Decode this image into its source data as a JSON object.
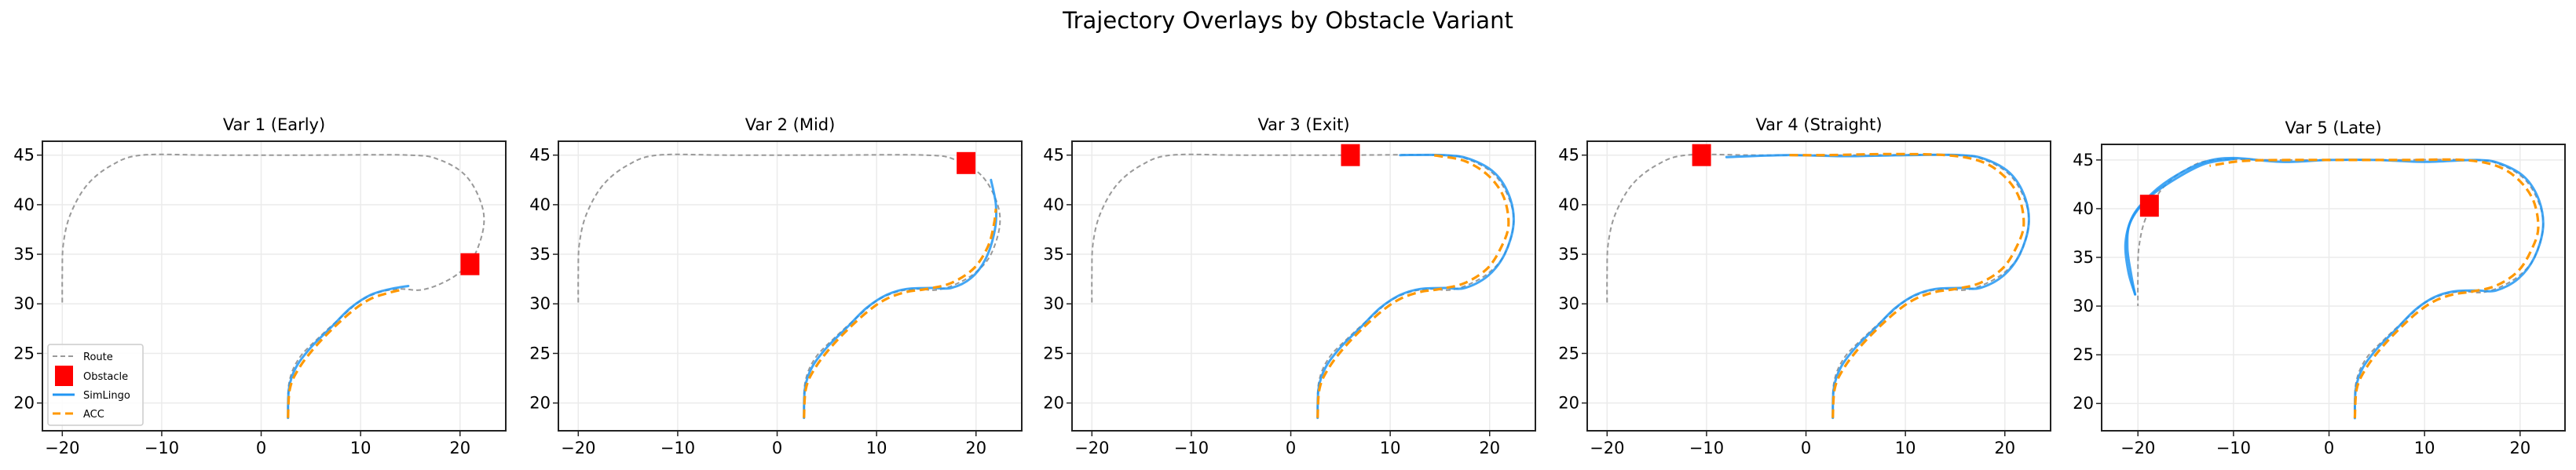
{
  "figure": {
    "title": "Trajectory Overlays by Obstacle Variant"
  },
  "colors": {
    "route": "#999999",
    "obstacle": "#ff0000",
    "simlingo": "#2196f3",
    "acc": "#ff9800",
    "grid": "#ebebeb"
  },
  "legend": {
    "placement": "lower-left of first panel",
    "items": [
      "Route",
      "Obstacle",
      "SimLingo",
      "ACC"
    ]
  },
  "chart_data": [
    {
      "type": "line",
      "title": "Var 1 (Early)",
      "xlim": [
        -22,
        24.6
      ],
      "ylim": [
        17.2,
        46.4
      ],
      "grid": true,
      "xticks": [
        "−20",
        "−10",
        "0",
        "10",
        "20"
      ],
      "xtick_values": [
        -20,
        -10,
        0,
        10,
        20
      ],
      "yticks": [
        "20",
        "25",
        "30",
        "35",
        "40",
        "45"
      ],
      "ytick_values": [
        20,
        25,
        30,
        35,
        40,
        45
      ],
      "obstacle": [
        21,
        34
      ],
      "simlingo": [
        [
          [
            2.7,
            18.5
          ],
          [
            2.8,
            21.5
          ],
          [
            3.5,
            23.6
          ],
          [
            5,
            25.6
          ],
          [
            7,
            27.6
          ],
          [
            9,
            29.6
          ],
          [
            11,
            30.9
          ],
          [
            13,
            31.5
          ],
          [
            14.8,
            31.8
          ]
        ]
      ],
      "acc": [
        [
          2.7,
          18.5
        ],
        [
          2.9,
          21.5
        ],
        [
          3.8,
          23.5
        ],
        [
          5.3,
          25.5
        ],
        [
          7.2,
          27.5
        ],
        [
          9.2,
          29.3
        ],
        [
          11,
          30.5
        ],
        [
          12.8,
          31.1
        ],
        [
          14,
          31.4
        ]
      ]
    },
    {
      "type": "line",
      "title": "Var 2 (Mid)",
      "xlim": [
        -22,
        24.6
      ],
      "ylim": [
        17.2,
        46.4
      ],
      "grid": true,
      "xticks": [
        "−20",
        "−10",
        "0",
        "10",
        "20"
      ],
      "xtick_values": [
        -20,
        -10,
        0,
        10,
        20
      ],
      "yticks": [
        "20",
        "25",
        "30",
        "35",
        "40",
        "45"
      ],
      "ytick_values": [
        20,
        25,
        30,
        35,
        40,
        45
      ],
      "obstacle": [
        19,
        44.2
      ],
      "simlingo": [
        [
          [
            2.7,
            18.5
          ],
          [
            2.8,
            21.5
          ],
          [
            3.5,
            23.6
          ],
          [
            5,
            25.6
          ],
          [
            7,
            27.6
          ],
          [
            9,
            29.6
          ],
          [
            11,
            30.9
          ],
          [
            13,
            31.5
          ],
          [
            15.5,
            31.6
          ],
          [
            17.5,
            31.6
          ],
          [
            19.5,
            32.6
          ],
          [
            21,
            34.6
          ],
          [
            21.9,
            37.5
          ],
          [
            22,
            40
          ],
          [
            21.5,
            42.5
          ]
        ]
      ],
      "acc": [
        [
          2.7,
          18.5
        ],
        [
          2.9,
          21.5
        ],
        [
          3.8,
          23.5
        ],
        [
          5.3,
          25.5
        ],
        [
          7.2,
          27.5
        ],
        [
          9.2,
          29.3
        ],
        [
          11,
          30.5
        ],
        [
          13,
          31.2
        ],
        [
          15,
          31.5
        ],
        [
          17.5,
          32.1
        ],
        [
          19.8,
          33.6
        ],
        [
          21.2,
          35.8
        ],
        [
          21.8,
          38
        ],
        [
          22,
          39.6
        ]
      ]
    },
    {
      "type": "line",
      "title": "Var 3 (Exit)",
      "xlim": [
        -22,
        24.6
      ],
      "ylim": [
        17.2,
        46.4
      ],
      "grid": true,
      "xticks": [
        "−20",
        "−10",
        "0",
        "10",
        "20"
      ],
      "xtick_values": [
        -20,
        -10,
        0,
        10,
        20
      ],
      "yticks": [
        "20",
        "25",
        "30",
        "35",
        "40",
        "45"
      ],
      "ytick_values": [
        20,
        25,
        30,
        35,
        40,
        45
      ],
      "obstacle": [
        6,
        45
      ],
      "simlingo": [
        [
          [
            2.7,
            18.5
          ],
          [
            2.8,
            21.5
          ],
          [
            3.5,
            23.6
          ],
          [
            5,
            25.6
          ],
          [
            7,
            27.6
          ],
          [
            9,
            29.6
          ],
          [
            11,
            30.9
          ],
          [
            13,
            31.5
          ],
          [
            15.5,
            31.6
          ],
          [
            17.5,
            31.6
          ],
          [
            19.8,
            32.8
          ],
          [
            21.5,
            35
          ],
          [
            22.4,
            38
          ],
          [
            22,
            40.8
          ],
          [
            20.5,
            43.2
          ],
          [
            18,
            44.6
          ],
          [
            15.5,
            45
          ],
          [
            11,
            45
          ]
        ]
      ],
      "acc": [
        [
          2.7,
          18.5
        ],
        [
          2.9,
          21.5
        ],
        [
          3.8,
          23.5
        ],
        [
          5.3,
          25.5
        ],
        [
          7.2,
          27.5
        ],
        [
          9.2,
          29.3
        ],
        [
          11,
          30.5
        ],
        [
          13,
          31.2
        ],
        [
          15,
          31.5
        ],
        [
          17.5,
          32.1
        ],
        [
          19.8,
          33.6
        ],
        [
          21.2,
          35.8
        ],
        [
          21.9,
          38
        ],
        [
          21.4,
          40.8
        ],
        [
          19.8,
          43
        ],
        [
          17.5,
          44.4
        ],
        [
          15,
          44.9
        ],
        [
          14,
          45
        ]
      ]
    },
    {
      "type": "line",
      "title": "Var 4 (Straight)",
      "xlim": [
        -22,
        24.6
      ],
      "ylim": [
        17.2,
        46.4
      ],
      "grid": true,
      "xticks": [
        "−20",
        "−10",
        "0",
        "10",
        "20"
      ],
      "xtick_values": [
        -20,
        -10,
        0,
        10,
        20
      ],
      "yticks": [
        "20",
        "25",
        "30",
        "35",
        "40",
        "45"
      ],
      "ytick_values": [
        20,
        25,
        30,
        35,
        40,
        45
      ],
      "obstacle": [
        -10.5,
        45
      ],
      "simlingo": [
        [
          [
            2.7,
            18.5
          ],
          [
            2.8,
            21.5
          ],
          [
            3.5,
            23.6
          ],
          [
            5,
            25.6
          ],
          [
            7,
            27.6
          ],
          [
            9,
            29.6
          ],
          [
            11,
            30.9
          ],
          [
            13,
            31.5
          ],
          [
            15.5,
            31.6
          ],
          [
            17.5,
            31.6
          ],
          [
            19.8,
            32.8
          ],
          [
            21.5,
            35
          ],
          [
            22.4,
            38
          ],
          [
            22,
            40.8
          ],
          [
            20.5,
            43.2
          ],
          [
            18,
            44.6
          ],
          [
            15.5,
            45
          ],
          [
            10,
            45
          ],
          [
            4,
            44.9
          ],
          [
            -2,
            45
          ],
          [
            -8,
            44.8
          ]
        ]
      ],
      "acc": [
        [
          2.7,
          18.5
        ],
        [
          2.9,
          21.5
        ],
        [
          3.8,
          23.5
        ],
        [
          5.3,
          25.5
        ],
        [
          7.2,
          27.5
        ],
        [
          9.2,
          29.3
        ],
        [
          11,
          30.5
        ],
        [
          13,
          31.2
        ],
        [
          15,
          31.5
        ],
        [
          17.5,
          32.1
        ],
        [
          19.8,
          33.6
        ],
        [
          21.2,
          35.8
        ],
        [
          21.9,
          38
        ],
        [
          21.4,
          40.8
        ],
        [
          19.8,
          43
        ],
        [
          17.5,
          44.4
        ],
        [
          14,
          45
        ],
        [
          8,
          45.1
        ],
        [
          2,
          45
        ],
        [
          -2,
          45
        ]
      ]
    },
    {
      "type": "line",
      "title": "Var 5 (Late)",
      "xlim": [
        -23.8,
        24.7
      ],
      "ylim": [
        17.2,
        46.6
      ],
      "grid": true,
      "xticks": [
        "−20",
        "−10",
        "0",
        "10",
        "20"
      ],
      "xtick_values": [
        -20,
        -10,
        0,
        10,
        20
      ],
      "yticks": [
        "20",
        "25",
        "30",
        "35",
        "40",
        "45"
      ],
      "ytick_values": [
        20,
        25,
        30,
        35,
        40,
        45
      ],
      "obstacle": [
        -18.8,
        40.3
      ],
      "simlingo": [
        [
          [
            2.7,
            18.5
          ],
          [
            2.8,
            21.5
          ],
          [
            3.5,
            23.6
          ],
          [
            5,
            25.6
          ],
          [
            7,
            27.6
          ],
          [
            9,
            29.6
          ],
          [
            11,
            30.9
          ],
          [
            13,
            31.5
          ],
          [
            15.5,
            31.6
          ],
          [
            17.5,
            31.6
          ],
          [
            19.8,
            32.8
          ],
          [
            21.5,
            35
          ],
          [
            22.4,
            38
          ],
          [
            22,
            40.8
          ],
          [
            20.5,
            43.2
          ],
          [
            18,
            44.6
          ],
          [
            15.5,
            45
          ],
          [
            10,
            44.8
          ],
          [
            5,
            45
          ],
          [
            0,
            45
          ],
          [
            -5,
            44.8
          ],
          [
            -10,
            45.2
          ],
          [
            -13,
            44.8
          ],
          [
            -16,
            43.4
          ],
          [
            -18.5,
            41.6
          ],
          [
            -20.5,
            39.3
          ],
          [
            -21.3,
            36.5
          ],
          [
            -21,
            33.5
          ],
          [
            -20.3,
            31.2
          ]
        ],
        [
          [
            -10,
            45.1
          ],
          [
            -13,
            44.6
          ],
          [
            -16,
            43.1
          ],
          [
            -19,
            41
          ],
          [
            -20.8,
            38.6
          ],
          [
            -21.1,
            36
          ],
          [
            -20.7,
            33.2
          ],
          [
            -20.3,
            31.2
          ]
        ]
      ],
      "acc": [
        [
          2.7,
          18.5
        ],
        [
          2.9,
          21.5
        ],
        [
          3.8,
          23.5
        ],
        [
          5.3,
          25.5
        ],
        [
          7.2,
          27.5
        ],
        [
          9.2,
          29.3
        ],
        [
          11,
          30.5
        ],
        [
          13,
          31.2
        ],
        [
          15,
          31.5
        ],
        [
          17.5,
          32.1
        ],
        [
          19.8,
          33.6
        ],
        [
          21.2,
          35.8
        ],
        [
          21.9,
          38
        ],
        [
          21.4,
          40.8
        ],
        [
          19.8,
          43
        ],
        [
          17.5,
          44.4
        ],
        [
          14,
          45
        ],
        [
          8,
          45
        ],
        [
          2,
          45
        ],
        [
          -4,
          45
        ],
        [
          -9,
          44.9
        ],
        [
          -12.5,
          44.4
        ]
      ]
    }
  ],
  "route": [
    [
      2.7,
      18.5
    ],
    [
      2.8,
      22
    ],
    [
      3.8,
      24.5
    ],
    [
      5.8,
      26.6
    ],
    [
      8,
      28.6
    ],
    [
      10,
      30.3
    ],
    [
      12,
      31.2
    ],
    [
      14,
      31.5
    ],
    [
      16,
      31.4
    ],
    [
      18,
      32
    ],
    [
      20,
      33.2
    ],
    [
      21.5,
      35
    ],
    [
      22.4,
      38
    ],
    [
      22,
      40.5
    ],
    [
      20.5,
      43
    ],
    [
      18,
      44.5
    ],
    [
      15,
      45
    ],
    [
      5,
      45
    ],
    [
      -5,
      45
    ],
    [
      -12,
      45
    ],
    [
      -15,
      44
    ],
    [
      -17.5,
      42
    ],
    [
      -19.2,
      39
    ],
    [
      -19.9,
      36
    ],
    [
      -20,
      33
    ],
    [
      -20,
      30
    ]
  ]
}
